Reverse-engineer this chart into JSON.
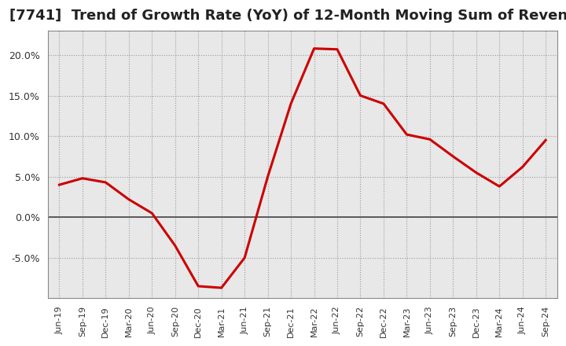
{
  "title": "[7741]  Trend of Growth Rate (YoY) of 12-Month Moving Sum of Revenues",
  "x_labels": [
    "Jun-19",
    "Sep-19",
    "Dec-19",
    "Mar-20",
    "Jun-20",
    "Sep-20",
    "Dec-20",
    "Mar-21",
    "Jun-21",
    "Sep-21",
    "Dec-21",
    "Mar-22",
    "Jun-22",
    "Sep-22",
    "Dec-22",
    "Mar-23",
    "Jun-23",
    "Sep-23",
    "Dec-23",
    "Mar-24",
    "Jun-24",
    "Sep-24"
  ],
  "y_values": [
    4.0,
    4.8,
    4.3,
    2.2,
    0.5,
    -3.5,
    -8.5,
    -8.7,
    -5.0,
    5.0,
    14.0,
    20.8,
    20.7,
    15.0,
    14.0,
    10.2,
    9.6,
    7.5,
    5.5,
    3.8,
    6.2,
    9.5
  ],
  "line_color": "#cc0000",
  "background_color": "#ffffff",
  "plot_bg_color": "#e8e8e8",
  "grid_color": "#999999",
  "ylim": [
    -10,
    23
  ],
  "yticks": [
    -5.0,
    0.0,
    5.0,
    10.0,
    15.0,
    20.0
  ],
  "ytick_labels": [
    "-5.0%",
    "0.0%",
    "5.0%",
    "10.0%",
    "15.0%",
    "20.0%"
  ],
  "title_fontsize": 13,
  "line_width": 2.2
}
